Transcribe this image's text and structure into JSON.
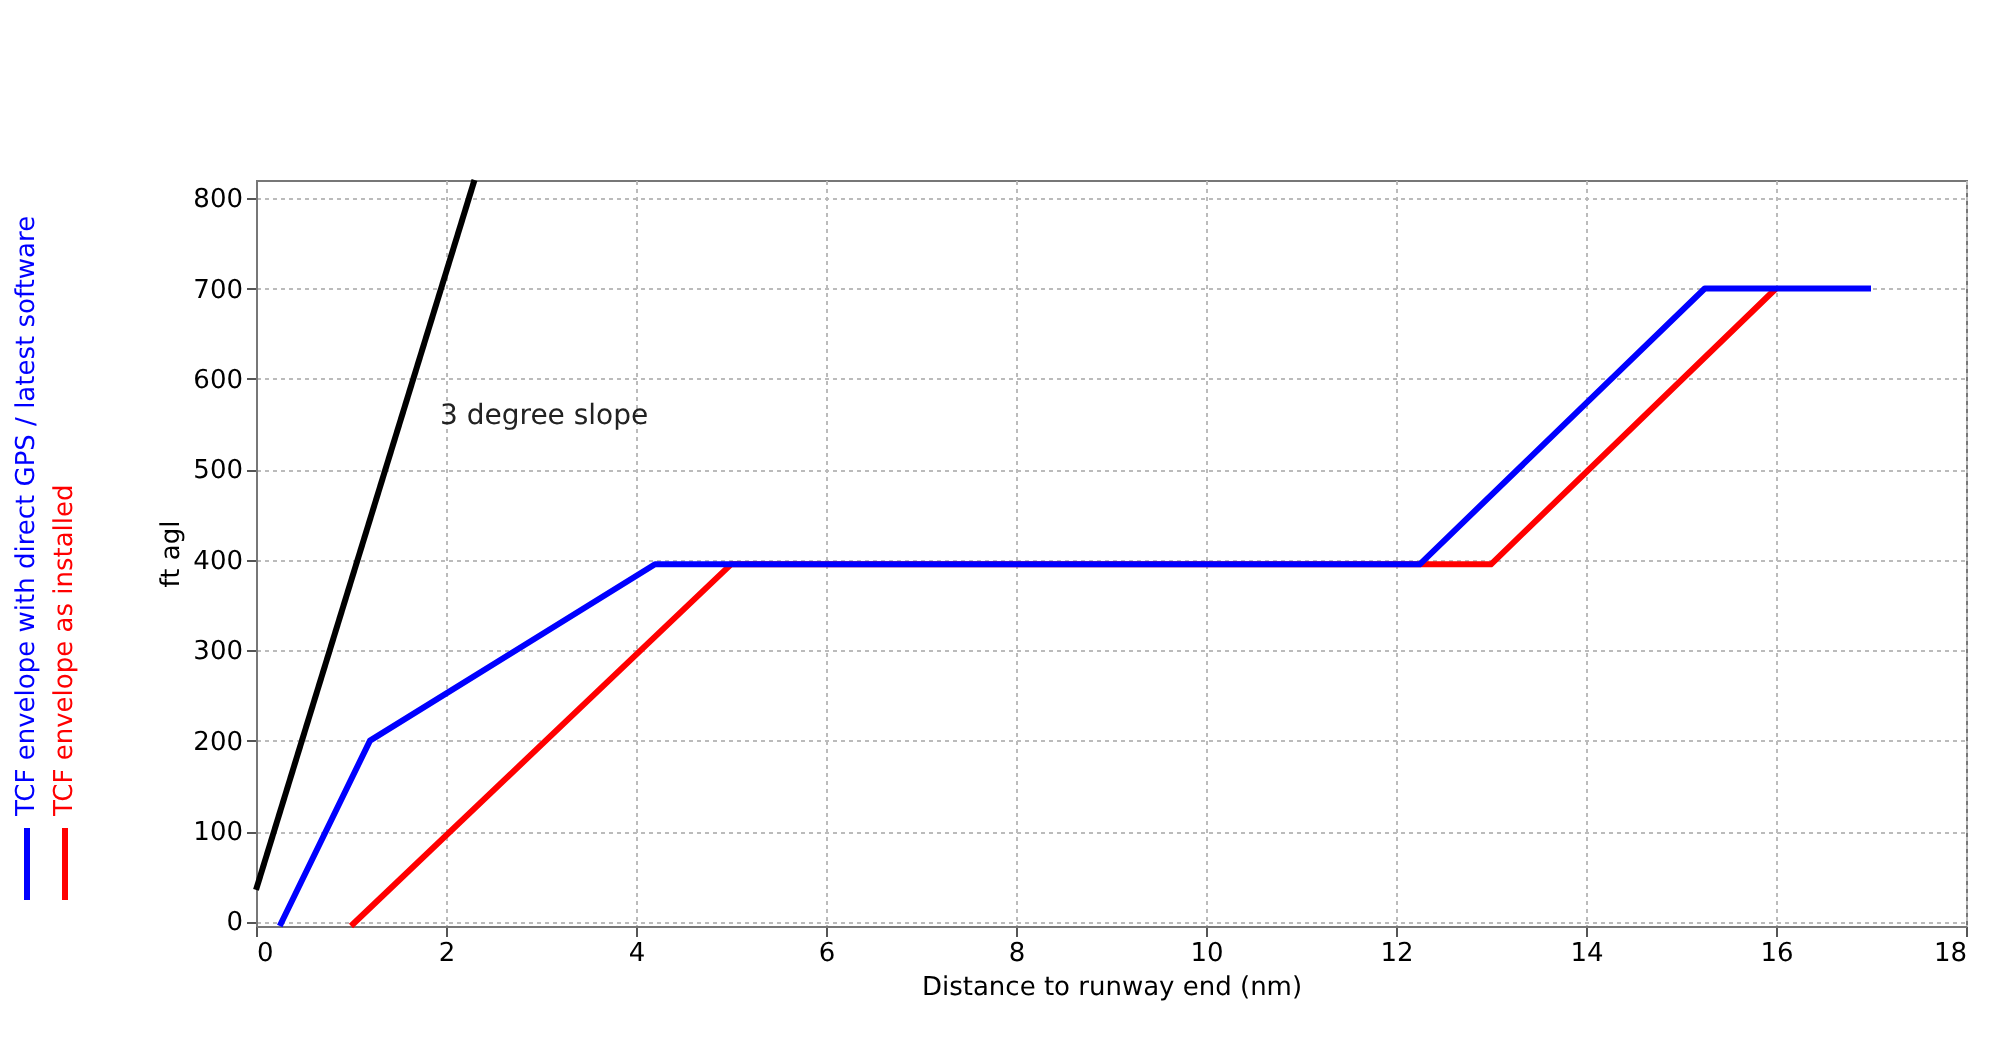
{
  "chart_data": {
    "type": "line",
    "xlabel": "Distance to runway end (nm)",
    "ylabel": "ft agl",
    "xlim": [
      0,
      18
    ],
    "xticks": [
      0,
      2,
      4,
      6,
      8,
      10,
      12,
      14,
      16,
      18
    ],
    "ylim": [
      -5,
      820
    ],
    "yticks": [
      0,
      100,
      200,
      300,
      400,
      500,
      600,
      700,
      800
    ],
    "grid": true,
    "legend": "left",
    "line_style": "solid",
    "marker": "none",
    "series": [
      {
        "color": "#000000",
        "x": [
          0,
          2.3
        ],
        "values": [
          35,
          820
        ]
      },
      {
        "name": "TCF envelope with direct GPS / latest software",
        "color": "#0000ff",
        "x": [
          0.25,
          1.2,
          4.2,
          12.25,
          15.25,
          17
        ],
        "values": [
          -5,
          200,
          395,
          395,
          700,
          700
        ]
      },
      {
        "name": "TCF envelope as installed",
        "color": "#ff0000",
        "x": [
          1,
          5,
          13,
          16
        ],
        "values": [
          -5,
          395,
          395,
          700
        ]
      }
    ],
    "annotations": [
      "3 degree slope"
    ]
  }
}
